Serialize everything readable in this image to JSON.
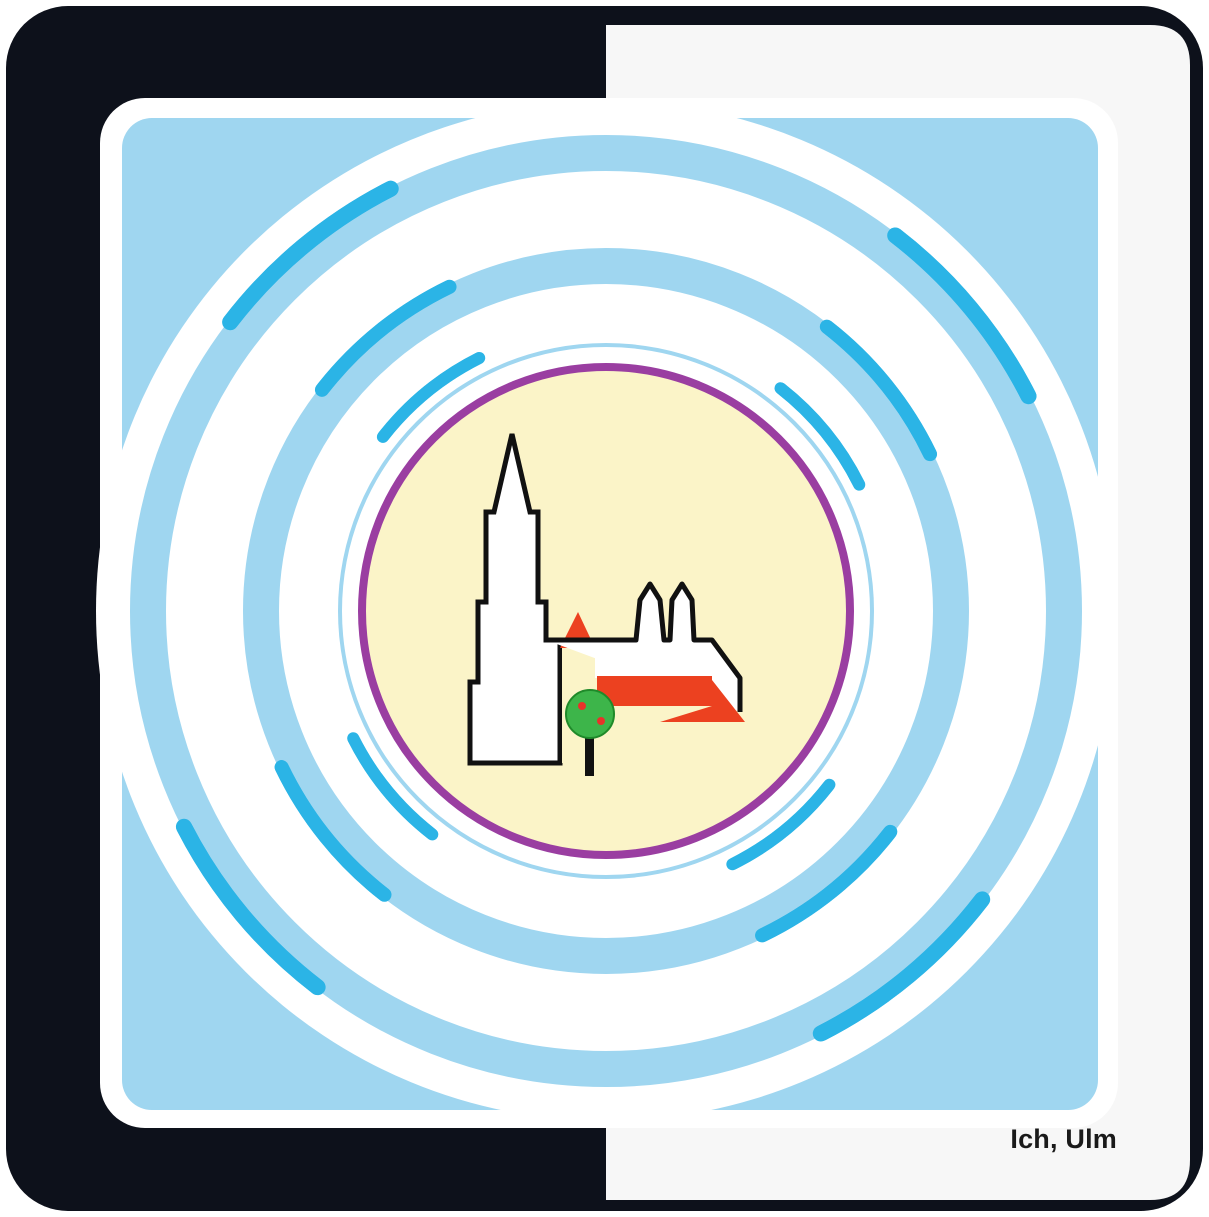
{
  "caption": "Ich, Ulm",
  "colors": {
    "frame_dark": "#0d111b",
    "frame_light": "#f7f7f7",
    "sky_light_blue": "#9fd6f0",
    "ring_blue": "#2bb4e6",
    "center_fill": "#fbf4c8",
    "center_border": "#9a3ea1",
    "roof_red": "#ec4120",
    "tree_green": "#3db54a",
    "apple_red": "#e8322a",
    "outline_black": "#111111"
  },
  "icons": [
    "ulm-minster-icon",
    "church-nave-icon",
    "tree-icon"
  ]
}
